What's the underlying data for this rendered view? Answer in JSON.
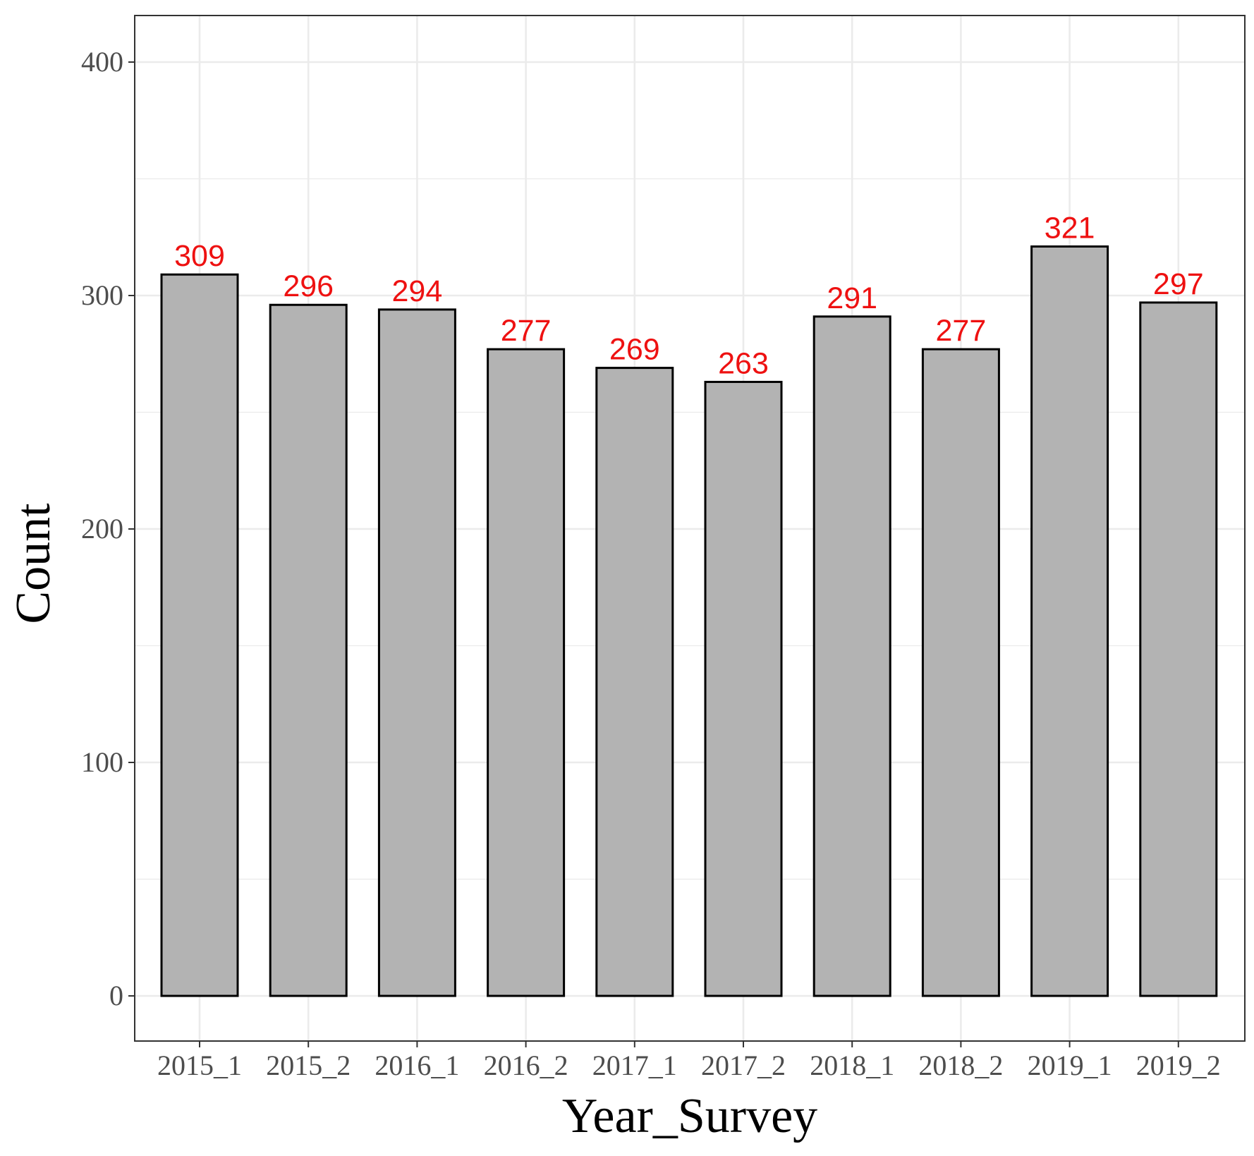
{
  "chart_data": {
    "type": "bar",
    "title": "",
    "xlabel": "Year_Survey",
    "ylabel": "Count",
    "categories": [
      "2015_1",
      "2015_2",
      "2016_1",
      "2016_2",
      "2017_1",
      "2017_2",
      "2018_1",
      "2018_2",
      "2019_1",
      "2019_2"
    ],
    "values": [
      309,
      296,
      294,
      277,
      269,
      263,
      291,
      277,
      321,
      297
    ],
    "data_labels": [
      "309",
      "296",
      "294",
      "277",
      "269",
      "263",
      "291",
      "277",
      "321",
      "297"
    ],
    "ylim": [
      0,
      400
    ],
    "yticks": [
      0,
      100,
      200,
      300,
      400
    ],
    "ytick_labels": [
      "0",
      "100",
      "200",
      "300",
      "400"
    ],
    "grid": true,
    "legend": "none",
    "colors": {
      "bar_fill": "#b3b3b3",
      "bar_stroke": "#000000",
      "data_label": "#ee1111",
      "grid": "#ebebeb",
      "panel_border": "#333333",
      "tick_text": "#4d4d4d",
      "axis_title": "#000000"
    }
  }
}
